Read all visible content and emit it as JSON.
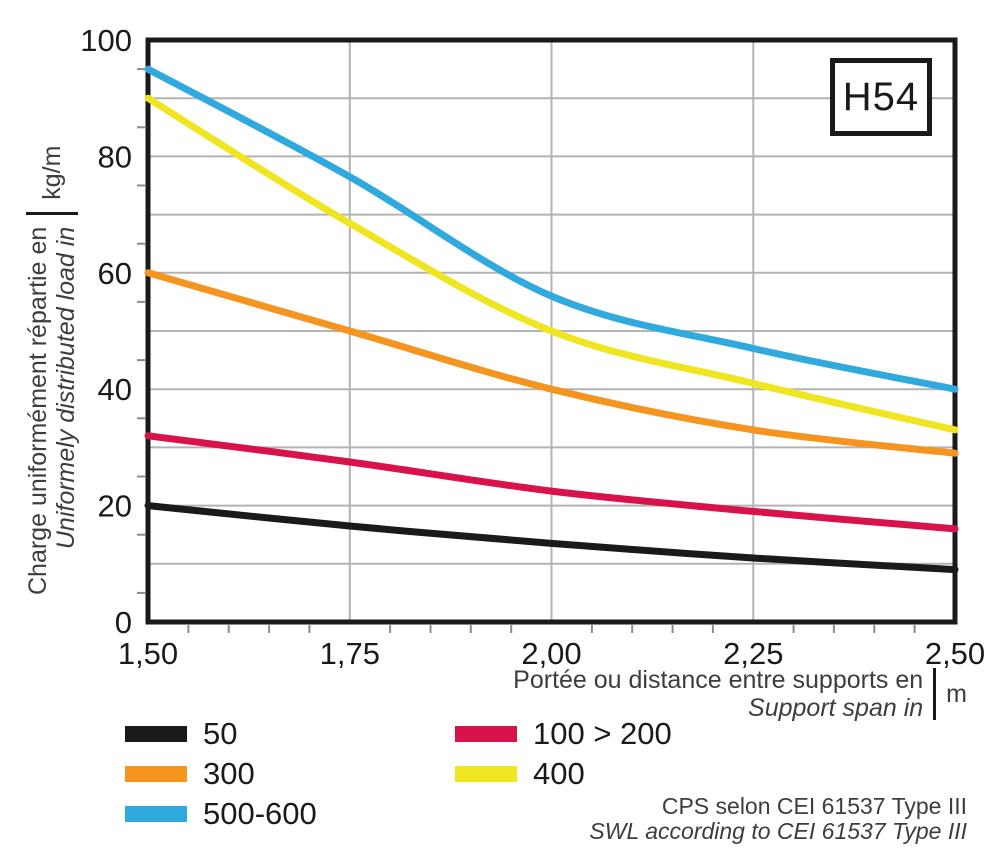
{
  "annotation": {
    "label": "H54"
  },
  "y_axis": {
    "title_fr": "Charge uniformément répartie en",
    "title_en": "Uniformely distributed load in",
    "unit": "kg/m",
    "ticks": [
      "0",
      "20",
      "40",
      "60",
      "80",
      "100"
    ]
  },
  "x_axis": {
    "title_fr": "Portée ou distance entre supports en",
    "title_en": "Support span in",
    "unit": "m",
    "ticks": [
      "1,50",
      "1,75",
      "2,00",
      "2,25",
      "2,50"
    ]
  },
  "legend": {
    "columns": [
      [
        {
          "label": "50",
          "color": "#1a1a1a"
        },
        {
          "label": "300",
          "color": "#f5941f"
        },
        {
          "label": "500-600",
          "color": "#30a9de"
        }
      ],
      [
        {
          "label": "100 > 200",
          "color": "#d8124a"
        },
        {
          "label": "400",
          "color": "#f0e521"
        }
      ]
    ]
  },
  "footer": {
    "line_fr": "CPS selon CEI 61537 Type III",
    "line_en": "SWL according to CEI 61537 Type III"
  },
  "chart_data": {
    "type": "line",
    "title": "H54 cable tray — safe working load vs support span",
    "x": [
      1.5,
      1.75,
      2.0,
      2.25,
      2.5
    ],
    "series": [
      {
        "name": "50",
        "color": "#1a1a1a",
        "values": [
          20,
          16.5,
          13.5,
          11,
          9
        ]
      },
      {
        "name": "100 > 200",
        "color": "#d8124a",
        "values": [
          32,
          27.5,
          22.5,
          19,
          16
        ]
      },
      {
        "name": "300",
        "color": "#f5941f",
        "values": [
          60,
          50,
          40,
          33,
          29
        ]
      },
      {
        "name": "400",
        "color": "#f0e521",
        "values": [
          90,
          68.5,
          50,
          41,
          33
        ]
      },
      {
        "name": "500-600",
        "color": "#30a9de",
        "values": [
          95,
          76.5,
          56,
          47,
          40
        ]
      }
    ],
    "xlabel": "Portée ou distance entre supports en m (Support span in m)",
    "ylabel": "Charge uniformément répartie en kg/m (Uniformely distributed load in kg/m)",
    "xlim": [
      1.5,
      2.5
    ],
    "ylim": [
      0,
      100
    ],
    "x_gridlines": [
      1.75,
      2.0,
      2.25
    ],
    "y_gridline_step": 10,
    "x_minor_tick_step": 0.05,
    "y_minor_tick_step": 5,
    "grid": true,
    "legend_position": "bottom-left"
  }
}
